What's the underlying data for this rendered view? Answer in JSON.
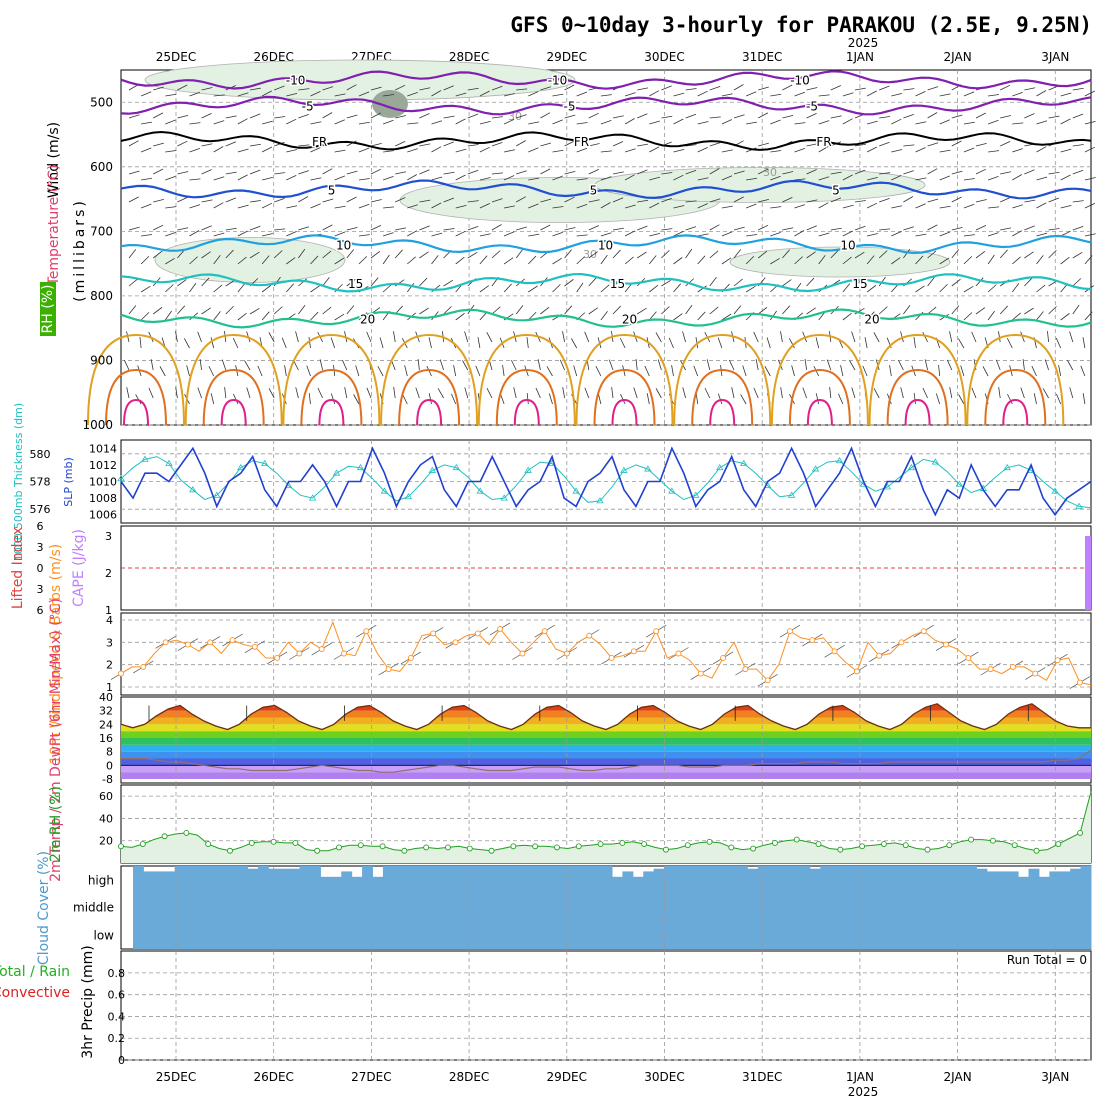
{
  "title": "GFS 0~10day 3-hourly for PARAKOU (2.5E, 9.25N)",
  "year": "2025",
  "date_ticks": [
    "25DEC",
    "26DEC",
    "27DEC",
    "28DEC",
    "29DEC",
    "30DEC",
    "31DEC",
    "1JAN",
    "2JAN",
    "3JAN"
  ],
  "colors": {
    "wind_label": "#000000",
    "temp_label": "#e0406a",
    "rh_label": "#3bb000",
    "cape": "#c080ff",
    "lifted": "#e04040",
    "wind10": "#ff9020",
    "slp": "#2040d0",
    "thick": "#20c0c0",
    "rh2m": "#20a020",
    "cloud": "#6aaad8",
    "precip_total": "#20b020",
    "precip_conv": "#e02020"
  },
  "chart_data": [
    {
      "type": "heatmap",
      "panel": "upper-air",
      "ylabels": [
        "Wind (m/s)",
        "Temperature (°C)",
        "RH (%)"
      ],
      "yunit": "(millibars)",
      "yticks": [
        500,
        600,
        700,
        800,
        900,
        1000
      ],
      "ylim": [
        450,
        1000
      ],
      "isotherms": [
        {
          "label": "-10",
          "level": 465,
          "color": "#8020b0"
        },
        {
          "label": "-5",
          "level": 505,
          "color": "#8020b0"
        },
        {
          "label": "FR",
          "level": 560,
          "color": "#000000"
        },
        {
          "label": "5",
          "level": 635,
          "color": "#2050d0"
        },
        {
          "label": "10",
          "level": 720,
          "color": "#20a0e0"
        },
        {
          "label": "15",
          "level": 780,
          "color": "#20c0c0"
        },
        {
          "label": "20",
          "level": 835,
          "color": "#20c090"
        }
      ],
      "rh_contour_labels": [
        "30"
      ]
    },
    {
      "type": "line",
      "panel": "slp-thickness",
      "ylabel_left": "1000-500mb Thickness (dm)",
      "ylabel_right": "SLP (mb)",
      "yticks_left": [
        576,
        578,
        580
      ],
      "yticks_right": [
        1006,
        1008,
        1010,
        1012,
        1014
      ],
      "series": [
        {
          "name": "SLP (mb)",
          "values": [
            1010,
            1008,
            1011,
            1011,
            1010,
            1012,
            1014,
            1011,
            1007,
            1010,
            1011,
            1013,
            1009,
            1007,
            1010,
            1010,
            1012,
            1010,
            1007,
            1010,
            1010,
            1014,
            1011,
            1007,
            1010,
            1012,
            1013,
            1009,
            1007,
            1010,
            1010,
            1013,
            1010,
            1007,
            1009,
            1010,
            1013,
            1008,
            1007,
            1010,
            1011,
            1013,
            1009,
            1007,
            1010,
            1010,
            1014,
            1011,
            1007,
            1009,
            1010,
            1013,
            1009,
            1007,
            1010,
            1011,
            1014,
            1011,
            1007,
            1009,
            1011,
            1014,
            1010,
            1007,
            1010,
            1010,
            1013,
            1009,
            1006,
            1009,
            1008,
            1012,
            1009,
            1007,
            1009,
            1009,
            1012,
            1008,
            1006,
            1008,
            1009,
            1010
          ]
        },
        {
          "name": "Thickness (dm)",
          "values": [
            578.2,
            579.0,
            579.6,
            579.8,
            579.3,
            578.1,
            577.4,
            576.7,
            577.0,
            577.9,
            579.0,
            579.5,
            579.3,
            578.6,
            577.7,
            577.0,
            576.8,
            577.6,
            578.6,
            579.1,
            579.0,
            578.2,
            577.3,
            576.6,
            576.9,
            577.8,
            578.8,
            579.2,
            579.0,
            578.3,
            577.3,
            576.7,
            576.8,
            577.7,
            578.8,
            579.4,
            579.3,
            578.4,
            577.3,
            576.5,
            576.6,
            577.6,
            578.8,
            579.2,
            578.9,
            578.1,
            577.3,
            576.7,
            577.0,
            577.9,
            579.0,
            579.5,
            579.3,
            578.6,
            577.7,
            576.9,
            577.0,
            577.9,
            578.9,
            579.4,
            579.5,
            578.7,
            577.8,
            577.3,
            577.6,
            578.3,
            579.0,
            579.6,
            579.4,
            578.7,
            577.8,
            577.2,
            577.5,
            578.3,
            579.0,
            579.2,
            578.8,
            578.0,
            577.3,
            576.6,
            576.2,
            576.1
          ]
        }
      ]
    },
    {
      "type": "bar",
      "panel": "stability",
      "ylabel_left": "Lifted Index",
      "ylabel_right": "CAPE (J/kg)",
      "yticks_left": [
        -6,
        -3,
        0,
        3,
        6
      ],
      "yticks_right": [
        1,
        2,
        3
      ],
      "series": [
        {
          "name": "CAPE (J/kg)",
          "values": [
            0,
            0,
            0,
            0,
            0,
            0,
            0,
            0,
            0,
            0,
            0,
            0,
            0,
            0,
            0,
            0,
            0,
            0,
            0,
            0,
            0,
            0,
            0,
            0,
            0,
            0,
            0,
            0,
            0,
            0,
            0,
            0,
            0,
            0,
            0,
            0,
            0,
            0,
            0,
            0,
            0,
            0,
            0,
            0,
            0,
            0,
            0,
            0,
            0,
            0,
            0,
            0,
            0,
            0,
            0,
            0,
            0,
            0,
            0,
            0,
            0,
            0,
            0,
            0,
            0,
            0,
            0,
            0,
            0,
            0,
            0,
            0,
            0,
            0,
            0,
            0,
            0,
            0,
            0,
            0,
            0,
            3
          ]
        }
      ]
    },
    {
      "type": "line",
      "panel": "wind10m",
      "ylabel": "10m Wind Speed & Barbs (m/s)",
      "yticks": [
        1,
        2,
        3,
        4
      ],
      "series": [
        {
          "name": "10m Wind Speed",
          "values": [
            1.6,
            1.9,
            1.9,
            2.5,
            3.0,
            3.1,
            2.9,
            2.6,
            3.0,
            2.5,
            3.1,
            2.9,
            2.8,
            2.3,
            2.3,
            3.0,
            2.5,
            3.0,
            2.7,
            3.9,
            2.5,
            2.4,
            3.5,
            2.5,
            1.8,
            1.7,
            2.3,
            3.3,
            3.4,
            2.9,
            3.0,
            3.3,
            3.4,
            2.9,
            3.6,
            3.0,
            2.5,
            3.0,
            3.5,
            2.7,
            2.5,
            3.0,
            3.3,
            2.9,
            2.3,
            2.4,
            2.6,
            2.6,
            3.5,
            2.3,
            2.5,
            2.2,
            1.6,
            1.4,
            2.3,
            3.0,
            1.8,
            1.8,
            1.3,
            2.0,
            3.5,
            3.2,
            3.1,
            3.2,
            2.6,
            2.1,
            1.7,
            3.0,
            2.4,
            2.5,
            3.0,
            3.3,
            3.5,
            3.1,
            2.9,
            2.7,
            2.3,
            1.8,
            1.8,
            1.6,
            1.9,
            1.9,
            1.6,
            1.3,
            2.2,
            2.3,
            1.2,
            1.1
          ]
        }
      ]
    },
    {
      "type": "area",
      "panel": "temperature",
      "ylabel": "2m Temp / 2m DewPt (6hr Min/Max) (°C)",
      "yticks": [
        -8,
        0,
        8,
        16,
        24,
        32,
        40
      ],
      "series": [
        {
          "name": "2m Temp",
          "values": [
            24,
            22,
            24,
            29,
            33,
            35,
            30,
            26,
            23,
            21,
            24,
            30,
            34,
            35,
            31,
            26,
            23,
            21,
            24,
            30,
            34,
            35,
            31,
            26,
            23,
            21,
            24,
            30,
            34,
            35,
            31,
            26,
            23,
            21,
            24,
            30,
            34,
            35,
            31,
            26,
            23,
            21,
            24,
            30,
            34,
            35,
            31,
            26,
            23,
            21,
            24,
            30,
            34,
            35,
            30,
            26,
            23,
            21,
            24,
            30,
            34,
            35,
            31,
            26,
            23,
            21,
            24,
            30,
            34,
            36,
            31,
            26,
            23,
            21,
            24,
            30,
            34,
            36,
            31,
            26,
            23,
            22,
            22
          ]
        },
        {
          "name": "2m DewPt",
          "values": [
            4,
            4,
            4,
            3,
            2,
            2,
            1,
            0,
            -1,
            -2,
            -2,
            -3,
            -3,
            -3,
            -3,
            -2,
            -1,
            0,
            -1,
            -2,
            -3,
            -3,
            -4,
            -4,
            -3,
            -2,
            -1,
            0,
            0,
            -1,
            -2,
            -3,
            -3,
            -3,
            -2,
            -1,
            -1,
            -1,
            -2,
            -3,
            -3,
            -2,
            -2,
            -1,
            0,
            0,
            0,
            0,
            -1,
            -1,
            -1,
            0,
            0,
            0,
            1,
            1,
            1,
            1,
            2,
            2,
            2,
            1,
            1,
            1,
            1,
            2,
            2,
            2,
            2,
            2,
            2,
            2,
            2,
            2,
            2,
            2,
            2,
            2,
            2,
            3,
            3,
            4,
            9
          ]
        }
      ]
    },
    {
      "type": "area",
      "panel": "rh2m",
      "ylabel": "2m RH (%)",
      "yticks": [
        20,
        40,
        60
      ],
      "series": [
        {
          "name": "2m RH",
          "values": [
            15,
            14,
            17,
            21,
            24,
            26,
            27,
            25,
            17,
            13,
            11,
            14,
            18,
            19,
            19,
            18,
            18,
            12,
            11,
            11,
            14,
            16,
            16,
            15,
            15,
            12,
            11,
            13,
            14,
            13,
            14,
            15,
            13,
            12,
            11,
            13,
            15,
            16,
            15,
            15,
            14,
            13,
            15,
            16,
            17,
            17,
            18,
            19,
            17,
            14,
            12,
            13,
            16,
            18,
            19,
            18,
            14,
            12,
            13,
            16,
            18,
            20,
            21,
            19,
            17,
            13,
            12,
            13,
            15,
            16,
            17,
            18,
            16,
            13,
            12,
            13,
            16,
            19,
            21,
            21,
            20,
            19,
            16,
            13,
            11,
            12,
            17,
            22,
            27,
            64
          ]
        }
      ]
    },
    {
      "type": "bar",
      "panel": "cloud-cover",
      "ylabel": "Cloud Cover (%)",
      "yticks": [
        "high",
        "middle",
        "low"
      ],
      "series": [
        {
          "name": "high",
          "values": [
            100,
            80,
            80,
            80,
            100,
            100,
            100,
            100,
            100,
            100,
            100,
            90,
            100,
            90,
            90,
            90,
            100,
            100,
            60,
            60,
            80,
            60,
            100,
            60,
            100,
            100,
            100,
            100,
            100,
            100,
            100,
            100,
            100,
            100,
            100,
            100,
            100,
            100,
            100,
            100,
            100,
            100,
            100,
            100,
            100,
            100,
            60,
            80,
            60,
            80,
            90,
            100,
            100,
            100,
            100,
            100,
            100,
            100,
            100,
            90,
            100,
            100,
            100,
            100,
            100,
            90,
            100,
            100,
            100,
            100,
            100,
            100,
            100,
            100,
            100,
            100,
            100,
            100,
            100,
            100,
            100,
            90,
            80,
            80,
            80,
            60,
            90,
            60,
            80,
            80,
            90,
            100
          ]
        },
        {
          "name": "middle",
          "values": [
            100,
            100,
            100,
            100,
            100,
            100,
            100,
            100,
            100,
            100,
            100,
            100,
            100,
            100,
            100,
            100,
            100,
            100,
            100,
            100,
            100,
            100,
            100,
            100,
            100,
            100,
            100,
            100,
            100,
            100,
            100,
            100,
            100,
            100,
            100,
            100,
            100,
            100,
            100,
            100,
            100,
            100,
            100,
            100,
            100,
            100,
            100,
            100,
            100,
            100,
            100,
            100,
            100,
            100,
            100,
            100,
            100,
            100,
            100,
            100,
            100,
            100,
            100,
            100,
            100,
            100,
            100,
            100,
            100,
            100,
            100,
            100,
            100,
            100,
            100,
            100,
            100,
            100,
            100,
            100,
            100,
            100,
            100,
            100,
            100,
            100,
            100,
            100,
            100,
            100,
            100,
            100
          ]
        },
        {
          "name": "low",
          "values": [
            100,
            100,
            100,
            100,
            100,
            100,
            100,
            100,
            100,
            100,
            100,
            100,
            100,
            100,
            100,
            100,
            100,
            100,
            100,
            100,
            100,
            100,
            100,
            100,
            100,
            100,
            100,
            100,
            100,
            100,
            100,
            100,
            100,
            100,
            100,
            100,
            100,
            100,
            100,
            100,
            100,
            100,
            100,
            100,
            100,
            100,
            100,
            100,
            100,
            100,
            100,
            100,
            100,
            100,
            100,
            100,
            100,
            100,
            100,
            100,
            100,
            100,
            100,
            100,
            100,
            100,
            100,
            100,
            100,
            100,
            100,
            100,
            100,
            100,
            100,
            100,
            100,
            100,
            100,
            100,
            100,
            100,
            100,
            100,
            100,
            100,
            100,
            100,
            100,
            100,
            100,
            100
          ]
        }
      ]
    },
    {
      "type": "bar",
      "panel": "precip",
      "ylabel_left_1": "Total / Rain",
      "ylabel_left_2": "Convective",
      "ylabel": "3hr Precip (mm)",
      "yticks": [
        0,
        0.2,
        0.4,
        0.6,
        0.8
      ],
      "run_total_label": "Run Total = 0",
      "series": [
        {
          "name": "Total",
          "values": []
        },
        {
          "name": "Convective",
          "values": []
        }
      ]
    }
  ]
}
